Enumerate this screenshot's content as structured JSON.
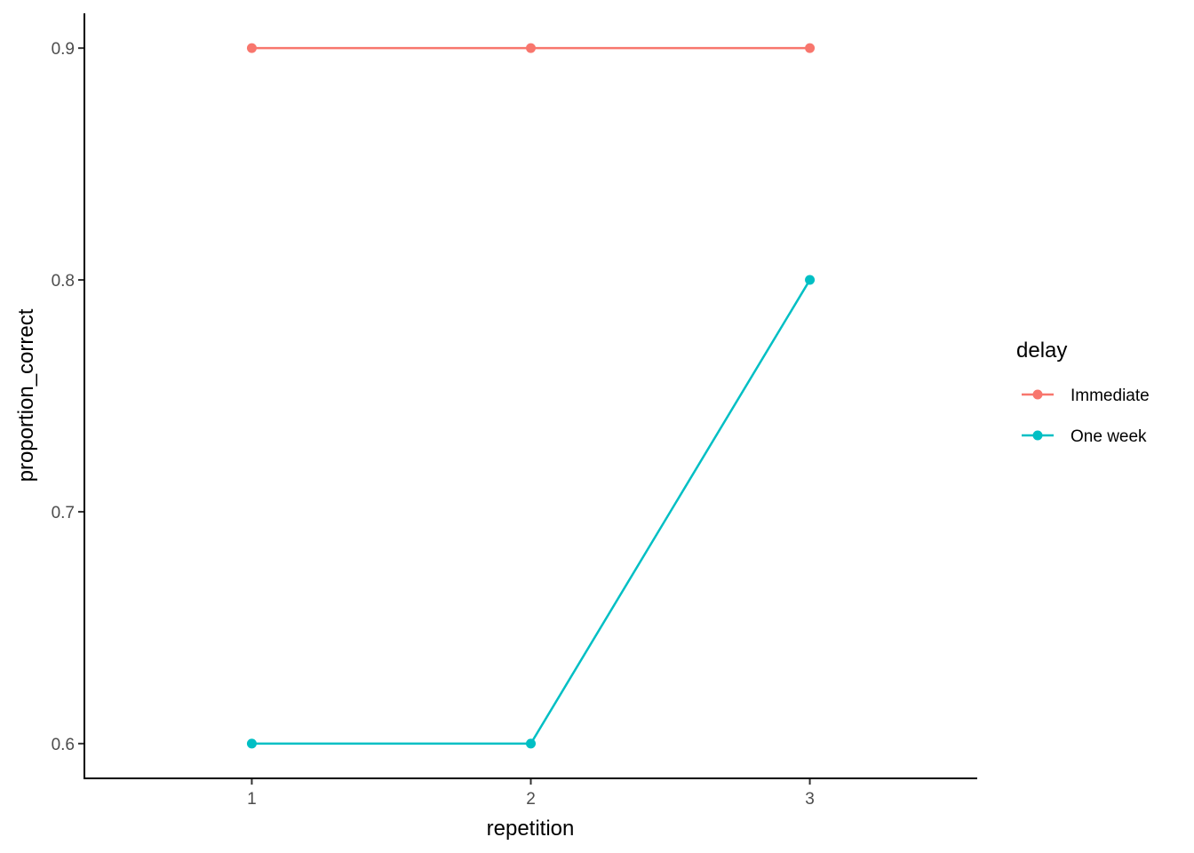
{
  "chart_data": {
    "type": "line",
    "xlabel": "repetition",
    "ylabel": "proportion_correct",
    "x": [
      1,
      2,
      3
    ],
    "xlim": [
      0.4,
      3.6
    ],
    "ylim": [
      0.585,
      0.915
    ],
    "xticks": [
      "1",
      "2",
      "3"
    ],
    "yticks": [
      "0.6",
      "0.7",
      "0.8",
      "0.9"
    ],
    "grid": false,
    "legend": {
      "title": "delay",
      "position": "right"
    },
    "series": [
      {
        "name": "Immediate",
        "color": "#F8766D",
        "values": [
          0.9,
          0.9,
          0.9
        ]
      },
      {
        "name": "One week",
        "color": "#00BFC4",
        "values": [
          0.6,
          0.6,
          0.8
        ]
      }
    ]
  }
}
